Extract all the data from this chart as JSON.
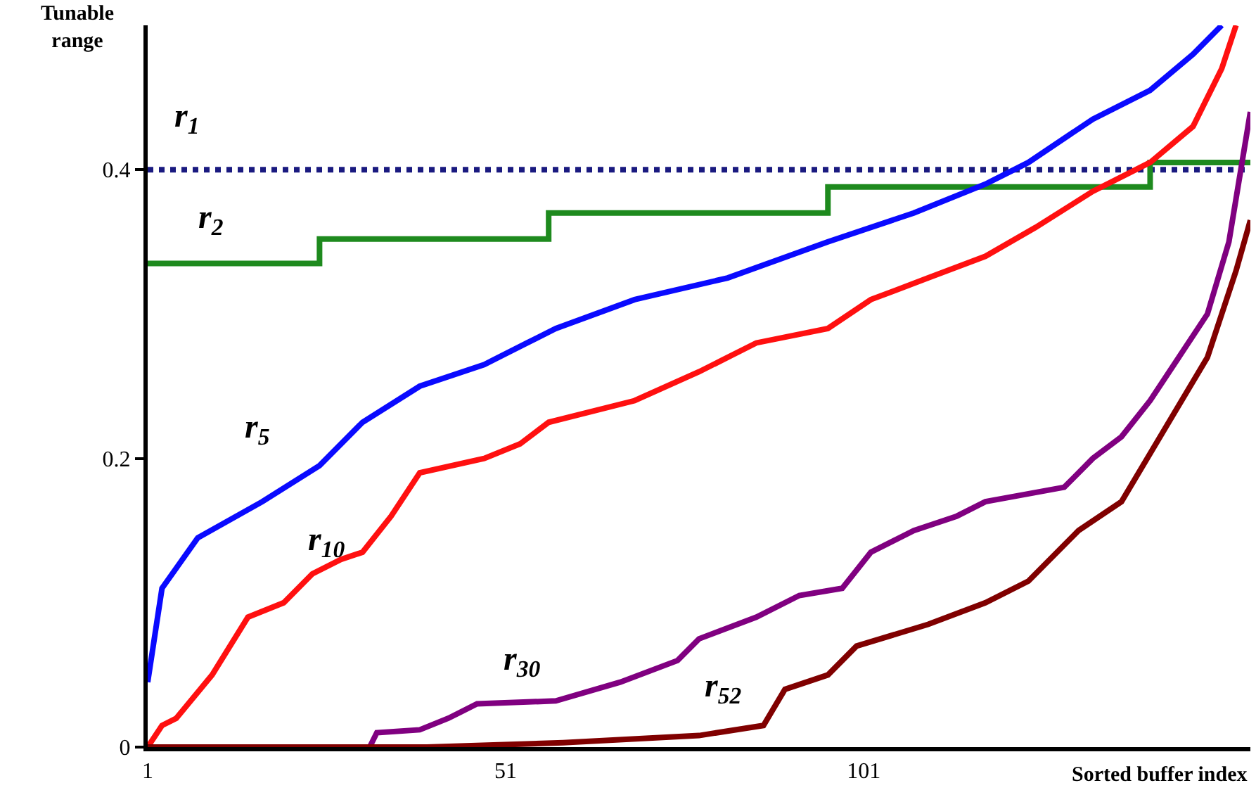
{
  "chart_data": {
    "type": "line",
    "xlabel": "Sorted buffer index",
    "ylabel": "Tunable range",
    "xlim": [
      1,
      155
    ],
    "ylim": [
      0,
      0.5
    ],
    "xticks": [
      1,
      51,
      101
    ],
    "yticks": [
      0,
      0.2,
      0.4
    ],
    "legend": false,
    "marker": "none",
    "series": [
      {
        "type": "line",
        "name": "r$_{1}$",
        "line_style": "dotted",
        "color": "#1a1a80",
        "x": [
          1,
          155
        ],
        "values": [
          0.4,
          0.4
        ]
      },
      {
        "type": "step",
        "name": "r$_{2}$",
        "color": "#1e8a1e",
        "x": [
          1,
          25,
          57,
          96,
          141,
          155
        ],
        "values": [
          0.335,
          0.352,
          0.37,
          0.388,
          0.405,
          0.405
        ]
      },
      {
        "name": "r$_{5}$",
        "color": "#0a0aff",
        "x": [
          1,
          3,
          8,
          17,
          25,
          31,
          39,
          48,
          54,
          58,
          69,
          82,
          96,
          108,
          118,
          124,
          133,
          141,
          147,
          151
        ],
        "values": [
          0.045,
          0.11,
          0.145,
          0.17,
          0.195,
          0.225,
          0.25,
          0.265,
          0.28,
          0.29,
          0.31,
          0.325,
          0.35,
          0.37,
          0.39,
          0.405,
          0.435,
          0.455,
          0.48,
          0.5
        ]
      },
      {
        "name": "r$_{10}$",
        "color": "#ff1010",
        "x": [
          1,
          3,
          5,
          10,
          15,
          20,
          24,
          28,
          31,
          35,
          39,
          48,
          53,
          57,
          69,
          78,
          86,
          96,
          102,
          110,
          118,
          125,
          133,
          141,
          147,
          151,
          153
        ],
        "values": [
          0,
          0.015,
          0.02,
          0.05,
          0.09,
          0.1,
          0.12,
          0.13,
          0.135,
          0.16,
          0.19,
          0.2,
          0.21,
          0.225,
          0.24,
          0.26,
          0.28,
          0.29,
          0.31,
          0.325,
          0.34,
          0.36,
          0.385,
          0.405,
          0.43,
          0.47,
          0.5
        ]
      },
      {
        "name": "r$_{30}$",
        "color": "#800080",
        "x": [
          1,
          32,
          33,
          39,
          43,
          47,
          58,
          67,
          75,
          78,
          86,
          92,
          98,
          102,
          108,
          114,
          118,
          129,
          133,
          137,
          141,
          145,
          149,
          152,
          155
        ],
        "values": [
          0,
          0,
          0.01,
          0.012,
          0.02,
          0.03,
          0.032,
          0.045,
          0.06,
          0.075,
          0.09,
          0.105,
          0.11,
          0.135,
          0.15,
          0.16,
          0.17,
          0.18,
          0.2,
          0.215,
          0.24,
          0.27,
          0.3,
          0.35,
          0.44
        ]
      },
      {
        "name": "r$_{52}$",
        "color": "#800000",
        "x": [
          1,
          40,
          59,
          78,
          87,
          90,
          96,
          100,
          110,
          118,
          124,
          131,
          137,
          143,
          149,
          153,
          155
        ],
        "values": [
          0,
          0,
          0.003,
          0.008,
          0.015,
          0.04,
          0.05,
          0.07,
          0.085,
          0.1,
          0.115,
          0.15,
          0.17,
          0.22,
          0.27,
          0.33,
          0.365
        ]
      }
    ]
  }
}
